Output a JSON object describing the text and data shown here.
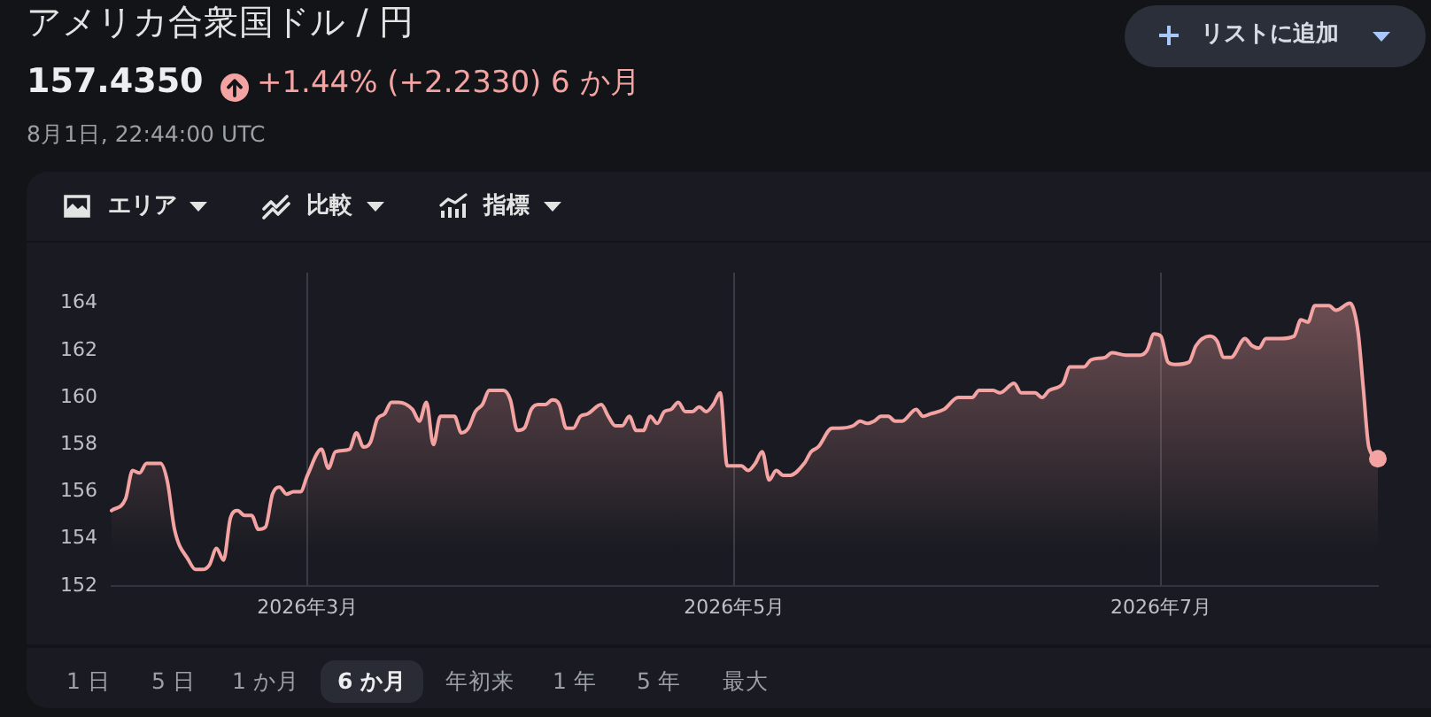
{
  "chart_data": {
    "type": "area",
    "title": "アメリカ合衆国ドル / 円",
    "annotations": [
      "157.4350",
      "+1.44% (+2.2330) 6 か月",
      "8月1日, 22:44:00 UTC",
      "リストに追加",
      "エリア",
      "比較",
      "指標",
      "1 日",
      "5 日",
      "1 か月",
      "6 か月",
      "年初来",
      "1 年",
      "5 年",
      "最大"
    ],
    "x": [
      "2026-02-01",
      "2026-02-03",
      "2026-02-04",
      "2026-02-05",
      "2026-02-06",
      "2026-02-08",
      "2026-02-09",
      "2026-02-10",
      "2026-02-12",
      "2026-02-13",
      "2026-02-14",
      "2026-02-15",
      "2026-02-16",
      "2026-02-17",
      "2026-02-18",
      "2026-02-19",
      "2026-02-20",
      "2026-02-21",
      "2026-02-22",
      "2026-02-23",
      "2026-02-24",
      "2026-02-25",
      "2026-02-26",
      "2026-02-27",
      "2026-02-28",
      "2026-03-01",
      "2026-03-03",
      "2026-03-04",
      "2026-03-05",
      "2026-03-07",
      "2026-03-08",
      "2026-03-09",
      "2026-03-10",
      "2026-03-11",
      "2026-03-12",
      "2026-03-13",
      "2026-03-14",
      "2026-03-16",
      "2026-03-17",
      "2026-03-18",
      "2026-03-19",
      "2026-03-20",
      "2026-03-22",
      "2026-03-23",
      "2026-03-24",
      "2026-03-25",
      "2026-03-26",
      "2026-03-27",
      "2026-03-29",
      "2026-03-30",
      "2026-03-31",
      "2026-04-01",
      "2026-04-02",
      "2026-04-03",
      "2026-04-04",
      "2026-04-05",
      "2026-04-06",
      "2026-04-07",
      "2026-04-08",
      "2026-04-09",
      "2026-04-10",
      "2026-04-12",
      "2026-04-13",
      "2026-04-14",
      "2026-04-15",
      "2026-04-16",
      "2026-04-17",
      "2026-04-18",
      "2026-04-19",
      "2026-04-20",
      "2026-04-21",
      "2026-04-22",
      "2026-04-23",
      "2026-04-24",
      "2026-04-25",
      "2026-04-26",
      "2026-04-27",
      "2026-04-28",
      "2026-04-29",
      "2026-04-30",
      "2026-05-01",
      "2026-05-02",
      "2026-05-03",
      "2026-05-04",
      "2026-05-05",
      "2026-05-06",
      "2026-05-07",
      "2026-05-08",
      "2026-05-09",
      "2026-05-11",
      "2026-05-12",
      "2026-05-13",
      "2026-05-15",
      "2026-05-16",
      "2026-05-18",
      "2026-05-19",
      "2026-05-20",
      "2026-05-21",
      "2026-05-22",
      "2026-05-23",
      "2026-05-24",
      "2026-05-25",
      "2026-05-27",
      "2026-05-28",
      "2026-05-29",
      "2026-05-31",
      "2026-06-02",
      "2026-06-04",
      "2026-06-05",
      "2026-06-07",
      "2026-06-08",
      "2026-06-10",
      "2026-06-11",
      "2026-06-13",
      "2026-06-14",
      "2026-06-15",
      "2026-06-17",
      "2026-06-18",
      "2026-06-20",
      "2026-06-21",
      "2026-06-23",
      "2026-06-24",
      "2026-06-26",
      "2026-06-28",
      "2026-06-29",
      "2026-06-30",
      "2026-07-01",
      "2026-07-02",
      "2026-07-03",
      "2026-07-05",
      "2026-07-06",
      "2026-07-08",
      "2026-07-09",
      "2026-07-10",
      "2026-07-11",
      "2026-07-13",
      "2026-07-14",
      "2026-07-15",
      "2026-07-16",
      "2026-07-18",
      "2026-07-20",
      "2026-07-21",
      "2026-07-22",
      "2026-07-23",
      "2026-07-25",
      "2026-07-26",
      "2026-07-28",
      "2026-07-28T14:00",
      "2026-07-29T05:00",
      "2026-07-29T22:00",
      "2026-07-30T17:00",
      "2026-08-01"
    ],
    "series": [
      {
        "color": "#f4a3a3",
        "values": [
          155.2,
          155.7,
          156.9,
          156.8,
          157.2,
          157.2,
          156.4,
          154.4,
          153.1,
          152.7,
          152.7,
          152.9,
          153.6,
          153.1,
          154.9,
          155.2,
          155.0,
          155.0,
          154.4,
          154.5,
          155.9,
          156.2,
          155.9,
          156.0,
          156.0,
          156.7,
          157.8,
          157.0,
          157.7,
          157.8,
          158.5,
          157.9,
          158.1,
          159.1,
          159.3,
          159.8,
          159.8,
          159.5,
          159.0,
          159.8,
          158.0,
          159.2,
          159.2,
          158.5,
          158.7,
          159.4,
          159.7,
          160.3,
          160.3,
          159.9,
          158.6,
          158.7,
          159.5,
          159.7,
          159.7,
          159.9,
          159.7,
          158.7,
          158.7,
          159.2,
          159.3,
          159.7,
          159.2,
          158.8,
          158.8,
          159.2,
          158.6,
          158.6,
          159.2,
          158.9,
          159.4,
          159.5,
          159.8,
          159.4,
          159.4,
          159.6,
          159.4,
          159.7,
          160.2,
          157.1,
          157.1,
          157.1,
          156.9,
          157.2,
          157.7,
          156.5,
          156.9,
          156.7,
          156.7,
          157.2,
          157.7,
          157.9,
          158.7,
          158.7,
          158.8,
          159.0,
          158.9,
          159.0,
          159.2,
          159.2,
          159.0,
          159.0,
          159.5,
          159.2,
          159.3,
          159.5,
          160.0,
          160.0,
          160.3,
          160.3,
          160.2,
          160.6,
          160.2,
          160.2,
          160.0,
          160.3,
          160.6,
          161.3,
          161.3,
          161.6,
          161.7,
          161.9,
          161.8,
          161.8,
          162.0,
          162.7,
          162.6,
          161.5,
          161.4,
          161.5,
          162.2,
          162.6,
          162.4,
          161.7,
          161.7,
          162.5,
          162.2,
          162.1,
          162.5,
          162.5,
          162.6,
          163.3,
          163.2,
          163.9,
          163.9,
          163.7,
          164.0,
          163.7,
          162.7,
          160.4,
          157.9,
          157.4
        ]
      },
      {
        "type": "scatter",
        "x": [
          "2026-08-01"
        ],
        "color": "#f4a3a3",
        "values": [
          157.4
        ]
      }
    ],
    "xlim": [
      "2026-02-01",
      "2026-08-01"
    ],
    "xticks": [
      {
        "value": "2026-03-01",
        "label": "2026年3月"
      },
      {
        "value": "2026-05-01",
        "label": "2026年5月"
      },
      {
        "value": "2026-07-01",
        "label": "2026年7月"
      }
    ],
    "ylim": [
      152,
      165.3
    ],
    "yticks": [
      152,
      154,
      156,
      158,
      160,
      162,
      164
    ],
    "grid": "x"
  }
}
